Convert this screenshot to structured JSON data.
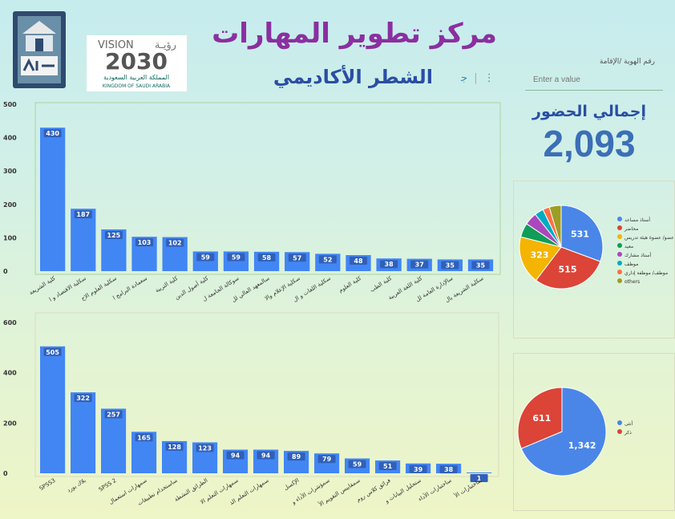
{
  "header": {
    "title": "مركز تطوير المهارات",
    "subtitle": "الشطر الأكاديمي",
    "vision_text": "VISION",
    "vision_arabic": "رؤيـة",
    "vision_year": "2030",
    "kingdom_ar": "المملكة العربية السعودية",
    "kingdom_en": "KINGDOM OF SAUDI ARABIA"
  },
  "filter": {
    "label": "رقم الهوية /الإقامة",
    "placeholder": "Enter a value"
  },
  "attendance": {
    "title": "إجمالي الحضور",
    "value": "2,093"
  },
  "colors": {
    "bar": "#4286f4",
    "bar_label_bg": "#3060b8"
  },
  "chart_data": [
    {
      "type": "bar",
      "title": "",
      "xlabel": "",
      "ylabel": "",
      "ylim": [
        0,
        500
      ],
      "yticks": [
        0,
        100,
        200,
        300,
        400,
        500
      ],
      "categories": [
        "كلية الشريعة",
        "سكلية الاقتصاد و ا",
        "سكلية العلوم الاج",
        "سعمادة البرامج ا",
        "كلية التربية",
        "كلية أصول الدين",
        "سوكالة الجامعة ل",
        "سالمعهد العالي لل",
        "سكلية الإعلام والا",
        "سكلية اللغات و ال",
        "كلية العلوم",
        "كلية الطب",
        "كلية اللغة العربية",
        "سالإدارة العامة لل",
        "سكلية الشريعة بال"
      ],
      "values": [
        430,
        187,
        125,
        103,
        102,
        59,
        59,
        58,
        57,
        52,
        48,
        38,
        37,
        35,
        35
      ]
    },
    {
      "type": "bar",
      "title": "",
      "xlabel": "",
      "ylabel": "",
      "ylim": [
        0,
        600
      ],
      "yticks": [
        0,
        200,
        400,
        600
      ],
      "categories": [
        "SPSS3",
        "بلاك بورد",
        "SPSS 2",
        "سمهارات استعمال",
        "ساستخدام تطبيقات",
        "الطرائق النشطة",
        "سمهارات التعلم الا",
        "سمهارات التعلم الذ",
        "الإكسل",
        "سمؤشرات الأداء و",
        "سمقاييس التقويم الأ",
        "فرائق كلاس روم",
        "ستحليل البيانات و",
        "ساختبارات الأداء",
        "ساختبارات الأ"
      ],
      "values": [
        505,
        322,
        257,
        165,
        128,
        123,
        94,
        94,
        89,
        79,
        59,
        51,
        39,
        38,
        1
      ]
    },
    {
      "type": "pie",
      "labels": [
        "أستاذ مساعد",
        "محاضر",
        "عضو/ عضوة هيئة تدريس",
        "معيد",
        "أستاذ مشارك",
        "موظف",
        "موظف/ موظفة إداري",
        "others"
      ],
      "values": [
        531,
        515,
        323,
        95,
        85,
        60,
        45,
        80
      ],
      "colors": [
        "#4a86e8",
        "#db4437",
        "#f4b400",
        "#0f9d58",
        "#ab47bc",
        "#00acc1",
        "#ff7043",
        "#9e9d24"
      ],
      "legend_position": "right"
    },
    {
      "type": "pie",
      "labels": [
        "أنثى",
        "ذكر"
      ],
      "values": [
        1342,
        611
      ],
      "colors": [
        "#4a86e8",
        "#db4437"
      ],
      "legend_position": "right"
    }
  ]
}
